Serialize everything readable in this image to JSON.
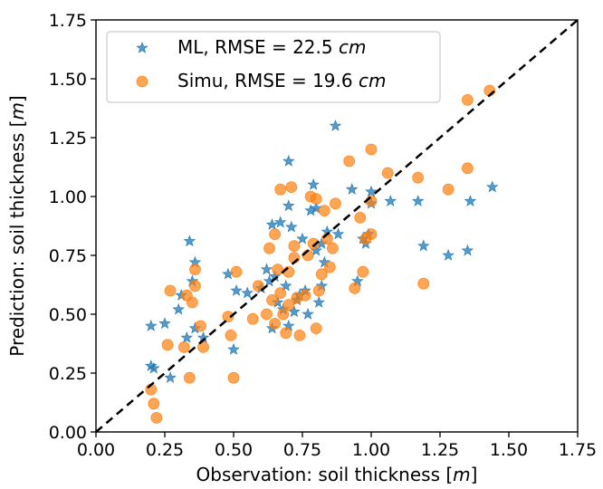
{
  "chart_data": {
    "type": "scatter",
    "xlabel": {
      "prefix": "Observation: soil thickness [",
      "unit": "m",
      "suffix": "]"
    },
    "ylabel": {
      "prefix": "Prediction: soil thickness [",
      "unit": "m",
      "suffix": "]"
    },
    "xlim": [
      0,
      1.75
    ],
    "ylim": [
      0,
      1.75
    ],
    "xticks": [
      "0.00",
      "0.25",
      "0.50",
      "0.75",
      "1.00",
      "1.25",
      "1.50",
      "1.75"
    ],
    "yticks": [
      "0.00",
      "0.25",
      "0.50",
      "0.75",
      "1.00",
      "1.25",
      "1.50",
      "1.75"
    ],
    "xtick_values": [
      0,
      0.25,
      0.5,
      0.75,
      1.0,
      1.25,
      1.5,
      1.75
    ],
    "ytick_values": [
      0,
      0.25,
      0.5,
      0.75,
      1.0,
      1.25,
      1.5,
      1.75
    ],
    "grid": false,
    "legend_position": "top-left",
    "reference_line": {
      "style": "dashed",
      "color": "#000000",
      "from": [
        0,
        0
      ],
      "to": [
        1.75,
        1.75
      ]
    },
    "series": [
      {
        "name": "ML",
        "legend_prefix": "ML, RMSE = 22.5 ",
        "legend_unit": "cm",
        "marker": "star",
        "color": "#1f77b4",
        "points": [
          [
            0.2,
            0.45
          ],
          [
            0.2,
            0.28
          ],
          [
            0.21,
            0.27
          ],
          [
            0.25,
            0.46
          ],
          [
            0.27,
            0.23
          ],
          [
            0.3,
            0.52
          ],
          [
            0.31,
            0.58
          ],
          [
            0.33,
            0.4
          ],
          [
            0.34,
            0.81
          ],
          [
            0.35,
            0.64
          ],
          [
            0.36,
            0.72
          ],
          [
            0.36,
            0.44
          ],
          [
            0.39,
            0.4
          ],
          [
            0.48,
            0.67
          ],
          [
            0.5,
            0.35
          ],
          [
            0.51,
            0.6
          ],
          [
            0.55,
            0.59
          ],
          [
            0.6,
            0.61
          ],
          [
            0.62,
            0.69
          ],
          [
            0.63,
            0.64
          ],
          [
            0.64,
            0.88
          ],
          [
            0.64,
            0.44
          ],
          [
            0.65,
            0.66
          ],
          [
            0.66,
            0.55
          ],
          [
            0.67,
            0.89
          ],
          [
            0.68,
            0.52
          ],
          [
            0.69,
            0.62
          ],
          [
            0.7,
            1.15
          ],
          [
            0.7,
            0.96
          ],
          [
            0.7,
            0.45
          ],
          [
            0.71,
            0.87
          ],
          [
            0.72,
            0.51
          ],
          [
            0.73,
            0.56
          ],
          [
            0.74,
            0.58
          ],
          [
            0.75,
            0.82
          ],
          [
            0.76,
            0.6
          ],
          [
            0.77,
            0.5
          ],
          [
            0.78,
            0.94
          ],
          [
            0.79,
            1.05
          ],
          [
            0.8,
            0.95
          ],
          [
            0.8,
            0.77
          ],
          [
            0.81,
            0.55
          ],
          [
            0.82,
            0.8
          ],
          [
            0.82,
            0.62
          ],
          [
            0.83,
            0.72
          ],
          [
            0.84,
            0.85
          ],
          [
            0.87,
            1.3
          ],
          [
            0.88,
            0.84
          ],
          [
            0.93,
            1.03
          ],
          [
            0.95,
            0.64
          ],
          [
            0.97,
            0.82
          ],
          [
            0.98,
            0.8
          ],
          [
            0.99,
            0.84
          ],
          [
            1.0,
            1.02
          ],
          [
            1.0,
            0.97
          ],
          [
            1.07,
            0.98
          ],
          [
            1.17,
            0.98
          ],
          [
            1.19,
            0.79
          ],
          [
            1.28,
            0.75
          ],
          [
            1.35,
            0.77
          ],
          [
            1.36,
            0.98
          ],
          [
            1.44,
            1.04
          ]
        ]
      },
      {
        "name": "Simu",
        "legend_prefix": "Simu, RMSE = 19.6 ",
        "legend_unit": "cm",
        "marker": "circle",
        "color": "#ff7f0e",
        "points": [
          [
            0.2,
            0.18
          ],
          [
            0.21,
            0.12
          ],
          [
            0.22,
            0.06
          ],
          [
            0.26,
            0.37
          ],
          [
            0.27,
            0.6
          ],
          [
            0.32,
            0.36
          ],
          [
            0.33,
            0.58
          ],
          [
            0.34,
            0.23
          ],
          [
            0.35,
            0.55
          ],
          [
            0.36,
            0.69
          ],
          [
            0.36,
            0.62
          ],
          [
            0.38,
            0.45
          ],
          [
            0.39,
            0.36
          ],
          [
            0.48,
            0.49
          ],
          [
            0.49,
            0.41
          ],
          [
            0.5,
            0.23
          ],
          [
            0.51,
            0.68
          ],
          [
            0.57,
            0.48
          ],
          [
            0.59,
            0.62
          ],
          [
            0.62,
            0.5
          ],
          [
            0.63,
            0.78
          ],
          [
            0.64,
            0.56
          ],
          [
            0.65,
            0.84
          ],
          [
            0.65,
            0.46
          ],
          [
            0.66,
            0.69
          ],
          [
            0.67,
            1.03
          ],
          [
            0.67,
            0.59
          ],
          [
            0.68,
            0.5
          ],
          [
            0.69,
            0.42
          ],
          [
            0.7,
            0.68
          ],
          [
            0.7,
            0.54
          ],
          [
            0.71,
            1.04
          ],
          [
            0.72,
            0.79
          ],
          [
            0.72,
            0.74
          ],
          [
            0.73,
            0.57
          ],
          [
            0.74,
            0.41
          ],
          [
            0.76,
            0.58
          ],
          [
            0.77,
            0.75
          ],
          [
            0.78,
            1.0
          ],
          [
            0.79,
            0.8
          ],
          [
            0.8,
            0.99
          ],
          [
            0.8,
            0.44
          ],
          [
            0.81,
            0.6
          ],
          [
            0.82,
            0.67
          ],
          [
            0.83,
            0.94
          ],
          [
            0.84,
            0.82
          ],
          [
            0.85,
            0.7
          ],
          [
            0.86,
            0.78
          ],
          [
            0.87,
            0.97
          ],
          [
            0.92,
            1.15
          ],
          [
            0.94,
            0.61
          ],
          [
            0.96,
            0.91
          ],
          [
            0.97,
            0.68
          ],
          [
            0.98,
            0.82
          ],
          [
            1.0,
            1.2
          ],
          [
            1.0,
            0.98
          ],
          [
            1.0,
            0.84
          ],
          [
            1.06,
            1.1
          ],
          [
            1.17,
            1.08
          ],
          [
            1.19,
            0.63
          ],
          [
            1.28,
            1.03
          ],
          [
            1.35,
            1.41
          ],
          [
            1.35,
            1.12
          ],
          [
            1.43,
            1.45
          ]
        ]
      }
    ]
  }
}
